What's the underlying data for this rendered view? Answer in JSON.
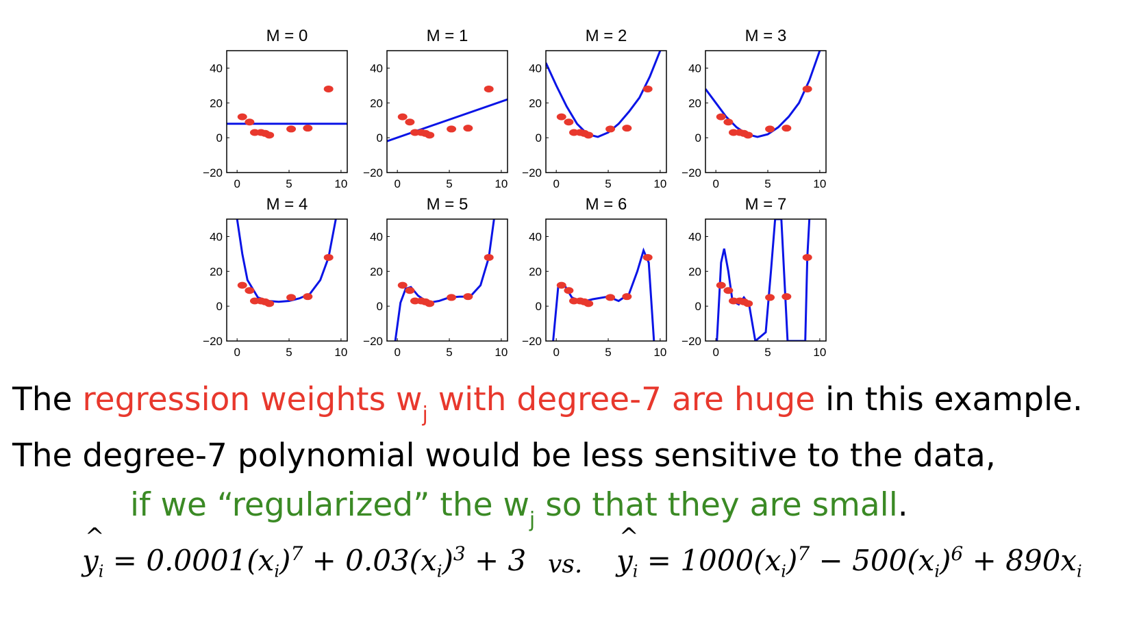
{
  "chart_data": {
    "type": "scatter",
    "xlim": [
      -1,
      10.6
    ],
    "ylim": [
      -20,
      50
    ],
    "x_ticks": [
      0,
      5,
      10
    ],
    "y_ticks": [
      -20,
      0,
      20,
      40
    ],
    "points": {
      "x": [
        0.5,
        1.2,
        1.7,
        2.3,
        2.7,
        3.1,
        5.2,
        6.8,
        8.8
      ],
      "y": [
        12,
        9,
        3,
        3,
        2.5,
        1.5,
        5,
        5.5,
        28
      ]
    },
    "panels": [
      {
        "title": "M = 0",
        "curve": [
          [
            -1,
            8
          ],
          [
            10.6,
            8
          ]
        ]
      },
      {
        "title": "M = 1",
        "curve": [
          [
            -1,
            -2
          ],
          [
            10.6,
            22
          ]
        ]
      },
      {
        "title": "M = 2",
        "curve": [
          [
            -1,
            43
          ],
          [
            0,
            30
          ],
          [
            1,
            18
          ],
          [
            2,
            8
          ],
          [
            3,
            2
          ],
          [
            4,
            0.5
          ],
          [
            5,
            3
          ],
          [
            6,
            8
          ],
          [
            7,
            15
          ],
          [
            8,
            23
          ],
          [
            9,
            35
          ],
          [
            10,
            50
          ]
        ]
      },
      {
        "title": "M = 3",
        "curve": [
          [
            -1,
            28
          ],
          [
            0,
            20
          ],
          [
            1,
            12
          ],
          [
            2,
            6
          ],
          [
            3,
            2
          ],
          [
            4,
            0.5
          ],
          [
            5,
            2
          ],
          [
            6,
            6
          ],
          [
            7,
            12
          ],
          [
            8,
            20
          ],
          [
            9,
            33
          ],
          [
            10,
            50
          ]
        ]
      },
      {
        "title": "M = 4",
        "curve": [
          [
            0,
            50
          ],
          [
            0.5,
            30
          ],
          [
            1,
            15
          ],
          [
            2,
            5
          ],
          [
            3,
            3
          ],
          [
            4,
            2.5
          ],
          [
            5,
            3
          ],
          [
            6,
            4.5
          ],
          [
            7,
            7
          ],
          [
            8,
            15
          ],
          [
            8.8,
            28
          ],
          [
            9.5,
            50
          ]
        ]
      },
      {
        "title": "M = 5",
        "curve": [
          [
            -0.2,
            -20
          ],
          [
            0.3,
            2
          ],
          [
            0.8,
            10
          ],
          [
            1.3,
            11
          ],
          [
            2,
            6
          ],
          [
            3,
            2
          ],
          [
            4,
            3
          ],
          [
            5,
            5
          ],
          [
            6,
            5.5
          ],
          [
            7,
            5.5
          ],
          [
            8,
            12
          ],
          [
            8.8,
            28
          ],
          [
            9.3,
            50
          ]
        ]
      },
      {
        "title": "M = 6",
        "curve": [
          [
            -0.3,
            -20
          ],
          [
            0.2,
            12
          ],
          [
            0.8,
            12
          ],
          [
            1.5,
            5
          ],
          [
            2.5,
            2.5
          ],
          [
            3.5,
            4
          ],
          [
            5,
            5.5
          ],
          [
            6,
            3
          ],
          [
            7,
            7
          ],
          [
            7.8,
            20
          ],
          [
            8.4,
            32
          ],
          [
            8.9,
            25
          ],
          [
            9.4,
            -20
          ]
        ]
      },
      {
        "title": "M = 7",
        "curve": [
          [
            0.1,
            -20
          ],
          [
            0.5,
            25
          ],
          [
            0.8,
            33
          ],
          [
            1.2,
            20
          ],
          [
            1.6,
            3
          ],
          [
            2.2,
            1
          ],
          [
            2.7,
            5
          ],
          [
            3.2,
            1
          ],
          [
            3.8,
            -20
          ],
          [
            4.8,
            -15
          ],
          [
            5.3,
            20
          ],
          [
            5.7,
            50
          ],
          [
            6.3,
            50
          ],
          [
            6.9,
            -20
          ],
          [
            8.6,
            -20
          ],
          [
            8.8,
            28
          ],
          [
            9,
            50
          ]
        ]
      }
    ]
  },
  "captions": {
    "line1_start": "The ",
    "line1_red": "regression weights w",
    "line1_sub": "j",
    "line1_red2": " with degree-7 are huge",
    "line1_end": " in this example.",
    "line2": "The degree-7 polynomial would be less sensitive to the data,",
    "line3_green": "if we “regularized” the w",
    "line3_sub": "j",
    "line3_green2": " so that they are small",
    "line3_end": "."
  },
  "handwriting": {
    "y": "y",
    "sub_i": "i",
    "eq1": "= 0.0001(x",
    "eq1b": ")",
    "exp7": "7",
    "eq1c": " + 0.03(x",
    "exp3": "3",
    "eq1d": " + 3",
    "vs": "vs.",
    "eq2": "= 1000(x",
    "eq2b": " − 500(x",
    "exp6": "6",
    "eq2c": " + 890x"
  }
}
